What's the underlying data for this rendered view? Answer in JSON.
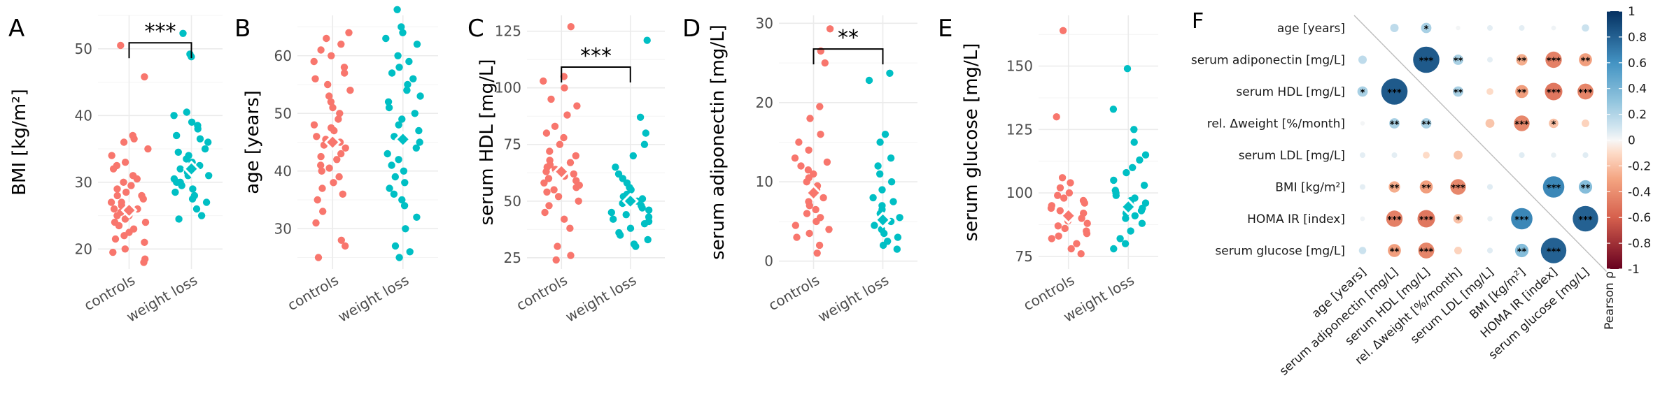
{
  "colors": {
    "controls": "#F8766D",
    "weight_loss": "#00BFC4",
    "diag_line": "#bdbdbd"
  },
  "chart_data": [
    {
      "panel": "A",
      "type": "scatter",
      "subtype": "jitter-strip",
      "categories": [
        "controls",
        "weight loss"
      ],
      "ylabel": "BMI [kg/m²]",
      "ylim": [
        17,
        55
      ],
      "yticks": [
        20,
        30,
        40,
        50
      ],
      "significance": "***",
      "series": [
        {
          "name": "controls",
          "values": [
            18,
            18.5,
            19.5,
            20,
            21,
            21.5,
            22,
            22.5,
            23,
            23.5,
            24,
            24,
            24.5,
            25,
            25,
            25.5,
            26,
            26,
            26.5,
            27,
            27,
            27.5,
            28,
            28,
            28.5,
            29,
            29.5,
            30,
            30.5,
            31,
            32,
            32.5,
            33,
            34,
            35,
            36,
            36.5,
            37,
            45.8,
            50.5
          ],
          "mean": 25.8
        },
        {
          "name": "weight loss",
          "values": [
            24.5,
            25,
            26,
            27,
            27.5,
            28,
            28.5,
            29,
            29.5,
            30,
            30,
            30.5,
            31,
            31,
            31.5,
            32,
            32,
            32.5,
            33,
            33.5,
            34,
            34.5,
            35,
            36,
            36.5,
            37,
            38,
            38.5,
            39,
            40,
            40.5,
            48.8,
            49.2,
            52.3
          ],
          "mean": 32
        }
      ]
    },
    {
      "panel": "B",
      "type": "scatter",
      "subtype": "jitter-strip",
      "categories": [
        "controls",
        "weight loss"
      ],
      "ylabel": "age [years]",
      "ylim": [
        23,
        67
      ],
      "yticks": [
        30,
        40,
        50,
        60
      ],
      "significance": "",
      "series": [
        {
          "name": "controls",
          "values": [
            25,
            27,
            28,
            31,
            33,
            35,
            36,
            37,
            38,
            39,
            40,
            40.5,
            41,
            42,
            42.5,
            43,
            44,
            44.5,
            45,
            45.5,
            46,
            47,
            47.5,
            48,
            49,
            50,
            51,
            52,
            53,
            54,
            55,
            56,
            57,
            58,
            59,
            60,
            61,
            62,
            63,
            64
          ],
          "mean": 45
        },
        {
          "name": "weight loss",
          "values": [
            25,
            26,
            27,
            30,
            32,
            34,
            35,
            36,
            37,
            38,
            39,
            40,
            41,
            42,
            43,
            44,
            45,
            46,
            47,
            48,
            49,
            50,
            51,
            52,
            53,
            54,
            55,
            56,
            57,
            58,
            59,
            60,
            62,
            63,
            64,
            65,
            68
          ],
          "mean": 45.5
        }
      ]
    },
    {
      "panel": "C",
      "type": "scatter",
      "subtype": "jitter-strip",
      "categories": [
        "controls",
        "weight loss"
      ],
      "ylabel": "serum HDL [mg/L]",
      "ylim": [
        20,
        132
      ],
      "yticks": [
        25,
        50,
        75,
        100,
        125
      ],
      "significance": "***",
      "series": [
        {
          "name": "controls",
          "values": [
            24,
            26,
            30,
            38,
            42,
            45,
            48,
            50,
            52,
            54,
            55,
            56,
            57,
            58,
            59,
            60,
            61,
            62,
            63,
            64,
            65,
            66,
            67,
            68,
            70,
            72,
            75,
            78,
            80,
            83,
            88,
            92,
            95,
            100,
            103,
            105,
            127
          ],
          "mean": 63
        },
        {
          "name": "weight loss",
          "values": [
            30,
            31,
            33,
            35,
            36,
            38,
            40,
            41,
            42,
            43,
            44,
            45,
            46,
            47,
            48,
            49,
            50,
            51,
            52,
            53,
            55,
            56,
            58,
            60,
            62,
            65,
            70,
            75,
            80,
            87,
            121
          ],
          "mean": 50
        }
      ]
    },
    {
      "panel": "D",
      "type": "scatter",
      "subtype": "jitter-strip",
      "categories": [
        "controls",
        "weight loss"
      ],
      "ylabel": "serum adiponectin [mg/L]",
      "ylim": [
        -1,
        31
      ],
      "yticks": [
        0,
        10,
        20,
        30
      ],
      "significance": "**",
      "series": [
        {
          "name": "controls",
          "values": [
            1,
            2,
            3,
            3.5,
            4,
            4.5,
            5,
            5.5,
            6,
            6.5,
            7,
            7.5,
            8,
            8.5,
            9,
            9.5,
            10,
            10.5,
            11,
            11.5,
            12,
            12.5,
            13,
            14,
            15,
            16,
            18,
            19.5,
            25,
            26.5,
            29.3
          ],
          "mean": 8.6
        },
        {
          "name": "weight loss",
          "values": [
            1.5,
            2,
            2.5,
            3,
            3.5,
            4,
            4.5,
            5,
            5.5,
            6,
            6.5,
            7,
            7.5,
            8,
            9,
            10,
            11,
            12,
            13,
            15,
            16,
            22.8,
            23.7
          ],
          "mean": 5.2
        }
      ]
    },
    {
      "panel": "E",
      "type": "scatter",
      "subtype": "jitter-strip",
      "categories": [
        "controls",
        "weight loss"
      ],
      "ylabel": "serum glucose [mg/L]",
      "ylim": [
        70,
        170
      ],
      "yticks": [
        75,
        100,
        125,
        150
      ],
      "significance": "",
      "series": [
        {
          "name": "controls",
          "values": [
            76,
            78,
            80,
            82,
            83,
            84,
            85,
            86,
            87,
            88,
            89,
            90,
            91,
            92,
            93,
            94,
            95,
            96,
            97,
            98,
            99,
            100,
            102,
            104,
            106,
            130,
            164
          ],
          "mean": 91
        },
        {
          "name": "weight loss",
          "values": [
            78,
            80,
            82,
            85,
            88,
            90,
            91,
            92,
            93,
            94,
            95,
            96,
            97,
            98,
            99,
            100,
            101,
            103,
            105,
            108,
            110,
            113,
            115,
            120,
            125,
            133,
            149
          ],
          "mean": 94.5
        }
      ]
    },
    {
      "panel": "F",
      "type": "heatmap",
      "subtype": "correlation-matrix",
      "variables": [
        "age [years]",
        "serum adiponectin [mg/L]",
        "serum HDL [mg/L]",
        "rel. Δweight [%/month]",
        "serum LDL [mg/L]",
        "BMI [kg/m²]",
        "HOMA IR [index]",
        "serum glucose [mg/L]"
      ],
      "matrix": [
        [
          1,
          0.16,
          0.23,
          0.01,
          0.05,
          0.05,
          0.02,
          0.12
        ],
        [
          0.16,
          1,
          0.83,
          0.23,
          0.05,
          -0.27,
          -0.46,
          -0.33
        ],
        [
          0.23,
          0.83,
          1,
          0.23,
          -0.1,
          -0.33,
          -0.5,
          -0.44
        ],
        [
          0.01,
          0.23,
          0.23,
          1,
          -0.18,
          -0.43,
          -0.2,
          -0.13
        ],
        [
          0.05,
          0.05,
          -0.1,
          -0.18,
          1,
          0.06,
          0.04,
          0.06
        ],
        [
          0.05,
          -0.27,
          -0.33,
          -0.43,
          0.06,
          1,
          0.65,
          0.35
        ],
        [
          0.02,
          -0.46,
          -0.5,
          -0.2,
          0.04,
          0.65,
          1,
          0.8
        ],
        [
          0.12,
          -0.33,
          -0.44,
          -0.13,
          0.06,
          0.35,
          0.8,
          1
        ]
      ],
      "stars": [
        [
          "",
          "",
          "*",
          "",
          "",
          "",
          "",
          ""
        ],
        [
          "",
          "",
          "***",
          "**",
          "",
          "**",
          "***",
          "**"
        ],
        [
          "*",
          "***",
          "",
          "**",
          "",
          "**",
          "***",
          "***"
        ],
        [
          "",
          "**",
          "**",
          "",
          "",
          "***",
          "*",
          ""
        ],
        [
          "",
          "",
          "",
          "",
          "",
          "",
          "",
          ""
        ],
        [
          "",
          "**",
          "**",
          "***",
          "",
          "",
          "***",
          "**"
        ],
        [
          "",
          "***",
          "***",
          "*",
          "",
          "***",
          "",
          "***"
        ],
        [
          "",
          "**",
          "***",
          "",
          "",
          "**",
          "***",
          ""
        ]
      ],
      "colorbar": {
        "label": "Pearson ρ",
        "range": [
          -1,
          1
        ],
        "ticks": [
          "1",
          "0.8",
          "0.6",
          "0.4",
          "0.2",
          "0",
          "-0.2",
          "-0.4",
          "-0.6",
          "-0.8",
          "-1"
        ]
      }
    }
  ]
}
